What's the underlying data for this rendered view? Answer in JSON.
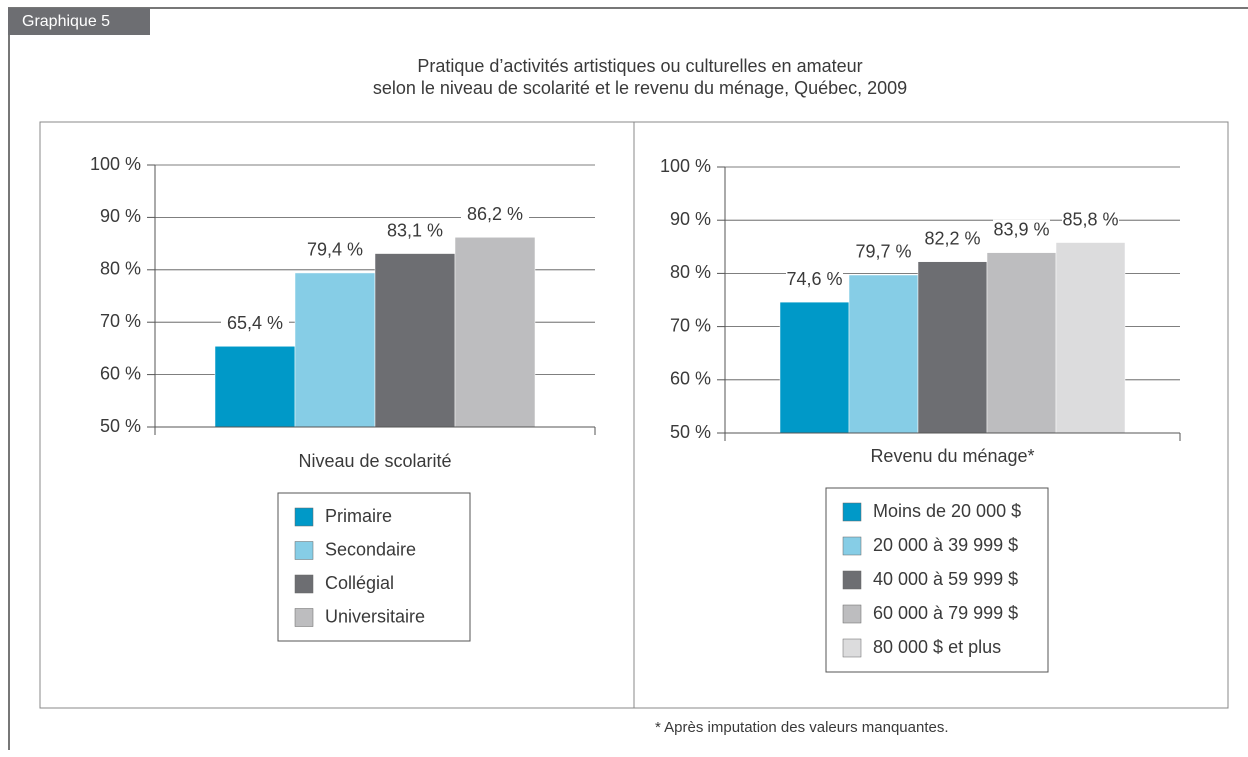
{
  "figure_label": "Graphique 5",
  "title": [
    "Pratique d’activités artistiques ou culturelles en amateur",
    "selon le niveau de scolarité et le revenu du ménage, Québec, 2009"
  ],
  "footnote": "* Après imputation des valeurs manquantes.",
  "chart_data": [
    {
      "type": "bar",
      "xlabel": "Niveau de scolarité",
      "categories": [
        "Primaire",
        "Secondaire",
        "Collégial",
        "Universitaire"
      ],
      "values": [
        65.4,
        79.4,
        83.1,
        86.2
      ],
      "value_labels": [
        "65,4 %",
        "79,4 %",
        "83,1 %",
        "86,2 %"
      ],
      "colors": [
        "#0099c8",
        "#86cde6",
        "#6d6e72",
        "#bdbdbf"
      ],
      "ylim": [
        50,
        100
      ],
      "yticks": [
        {
          "value": 50,
          "label": "50 %"
        },
        {
          "value": 60,
          "label": "60 %"
        },
        {
          "value": 70,
          "label": "70 %"
        },
        {
          "value": 80,
          "label": "80 %"
        },
        {
          "value": 90,
          "label": "90 %"
        },
        {
          "value": 100,
          "label": "100 %"
        }
      ],
      "grid": true
    },
    {
      "type": "bar",
      "xlabel": "Revenu du ménage*",
      "categories": [
        "Moins de 20 000 $",
        "20 000 à 39 999 $",
        "40 000 à 59 999 $",
        "60 000 à 79 999 $",
        "80 000 $ et plus"
      ],
      "values": [
        74.6,
        79.7,
        82.2,
        83.9,
        85.8
      ],
      "value_labels": [
        "74,6 %",
        "79,7 %",
        "82,2 %",
        "83,9 %",
        "85,8 %"
      ],
      "colors": [
        "#0099c8",
        "#86cde6",
        "#6d6e72",
        "#bdbdbf",
        "#dcdcdd"
      ],
      "ylim": [
        50,
        100
      ],
      "yticks": [
        {
          "value": 50,
          "label": "50 %"
        },
        {
          "value": 60,
          "label": "60 %"
        },
        {
          "value": 70,
          "label": "70 %"
        },
        {
          "value": 80,
          "label": "80 %"
        },
        {
          "value": 90,
          "label": "90 %"
        },
        {
          "value": 100,
          "label": "100 %"
        }
      ],
      "grid": true
    }
  ]
}
